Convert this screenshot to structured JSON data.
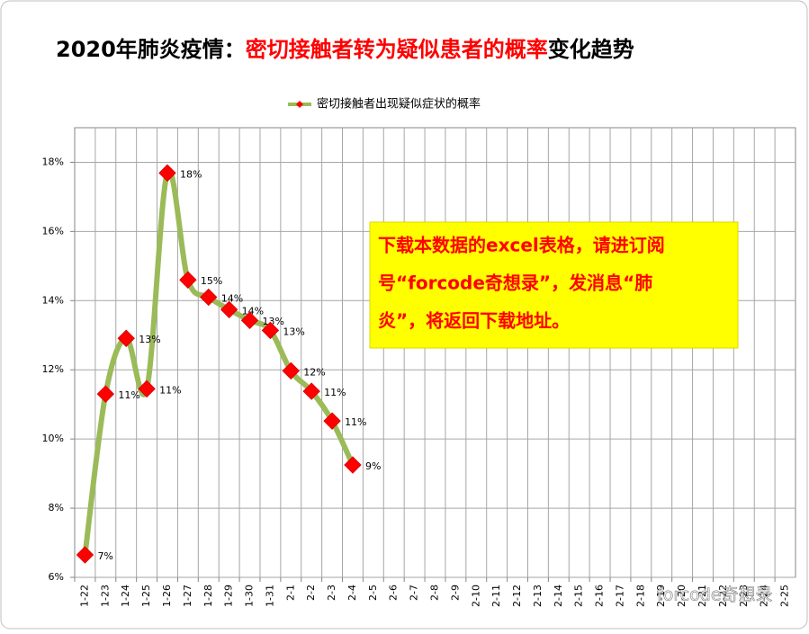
{
  "chart_data": {
    "type": "line",
    "title": [
      "2020年肺炎疫情：",
      "密切接触者转为疑似患者的概率",
      "变化趋势"
    ],
    "title_colors": [
      "#000000",
      "#ff0000",
      "#000000"
    ],
    "categories": [
      "1-22",
      "1-23",
      "1-24",
      "1-25",
      "1-26",
      "1-27",
      "1-28",
      "1-29",
      "1-30",
      "1-31",
      "2-1",
      "2-2",
      "2-3",
      "2-4",
      "2-5",
      "2-6",
      "2-7",
      "2-8",
      "2-9",
      "2-10",
      "2-11",
      "2-12",
      "2-13",
      "2-14",
      "2-15",
      "2-16",
      "2-17",
      "2-18",
      "2-19",
      "2-20",
      "2-21",
      "2-22",
      "2-23",
      "2-24",
      "2-25"
    ],
    "series": [
      {
        "name": "密切接触者出现疑似症状的概率",
        "color": "#9bbb59",
        "marker_color": "#ff0000",
        "values": [
          6.65,
          11.3,
          12.91,
          11.45,
          17.69,
          14.6,
          14.1,
          13.74,
          13.43,
          13.14,
          11.97,
          11.38,
          10.52,
          9.25,
          null,
          null,
          null,
          null,
          null,
          null,
          null,
          null,
          null,
          null,
          null,
          null,
          null,
          null,
          null,
          null,
          null,
          null,
          null,
          null,
          null
        ],
        "value_labels": [
          "7%",
          "11%",
          "13%",
          "11%",
          "18%",
          "15%",
          "14%",
          "14%",
          "13%",
          "13%",
          "12%",
          "11%",
          "11%",
          "9%",
          null,
          null,
          null,
          null,
          null,
          null,
          null,
          null,
          null,
          null,
          null,
          null,
          null,
          null,
          null,
          null,
          null,
          null,
          null,
          null,
          null
        ]
      }
    ],
    "ylim": [
      6,
      19
    ],
    "yticks": [
      {
        "value": 6,
        "label": "6%"
      },
      {
        "value": 8,
        "label": "8%"
      },
      {
        "value": 10,
        "label": "10%"
      },
      {
        "value": 12,
        "label": "12%"
      },
      {
        "value": 14,
        "label": "14%"
      },
      {
        "value": 16,
        "label": "16%"
      },
      {
        "value": 18,
        "label": "18%"
      }
    ],
    "grid": true,
    "legend": "top",
    "annotation": [
      "下载本数据的excel表格，请进订阅",
      "号“forcode奇想录”，发消息“肺",
      "炎”，将返回下载地址。"
    ],
    "watermark": "forcode奇想录"
  }
}
